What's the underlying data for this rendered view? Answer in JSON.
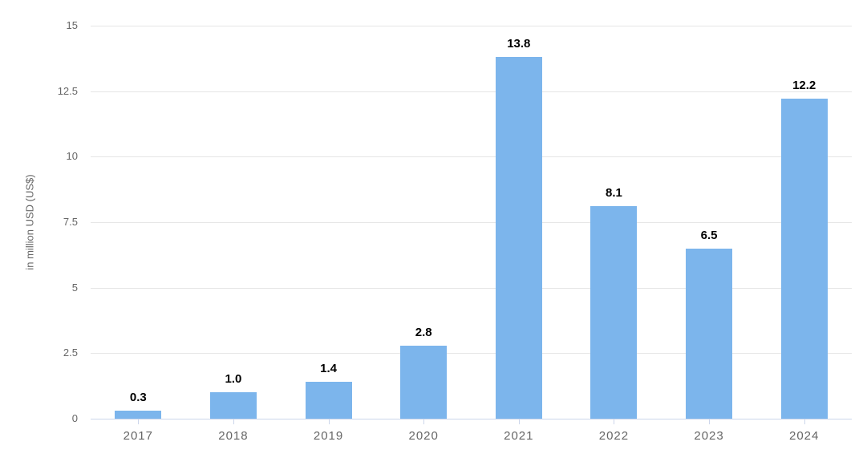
{
  "chart_data": {
    "type": "bar",
    "title": "",
    "categories": [
      "2017",
      "2018",
      "2019",
      "2020",
      "2021",
      "2022",
      "2023",
      "2024"
    ],
    "values": [
      0.3,
      1.0,
      1.4,
      2.8,
      13.8,
      8.1,
      6.5,
      12.2
    ],
    "value_labels": [
      "0.3",
      "1.0",
      "1.4",
      "2.8",
      "13.8",
      "8.1",
      "6.5",
      "12.2"
    ],
    "xlabel": "",
    "ylabel": "in million USD (US$)",
    "ylim": [
      0,
      15
    ],
    "ytick_step": 2.5,
    "yticks": [
      "0",
      "2.5",
      "5",
      "7.5",
      "10",
      "12.5",
      "15"
    ],
    "ytick_values": [
      0,
      2.5,
      5,
      7.5,
      10,
      12.5,
      15
    ],
    "grid": true,
    "legend": "none",
    "colors": {
      "bar": "#7cb5ec",
      "axis_line": "#ccd6eb",
      "gridline": "#e6e6e6",
      "tick_label": "#666666",
      "value_label": "#000000",
      "background": "#ffffff"
    }
  }
}
